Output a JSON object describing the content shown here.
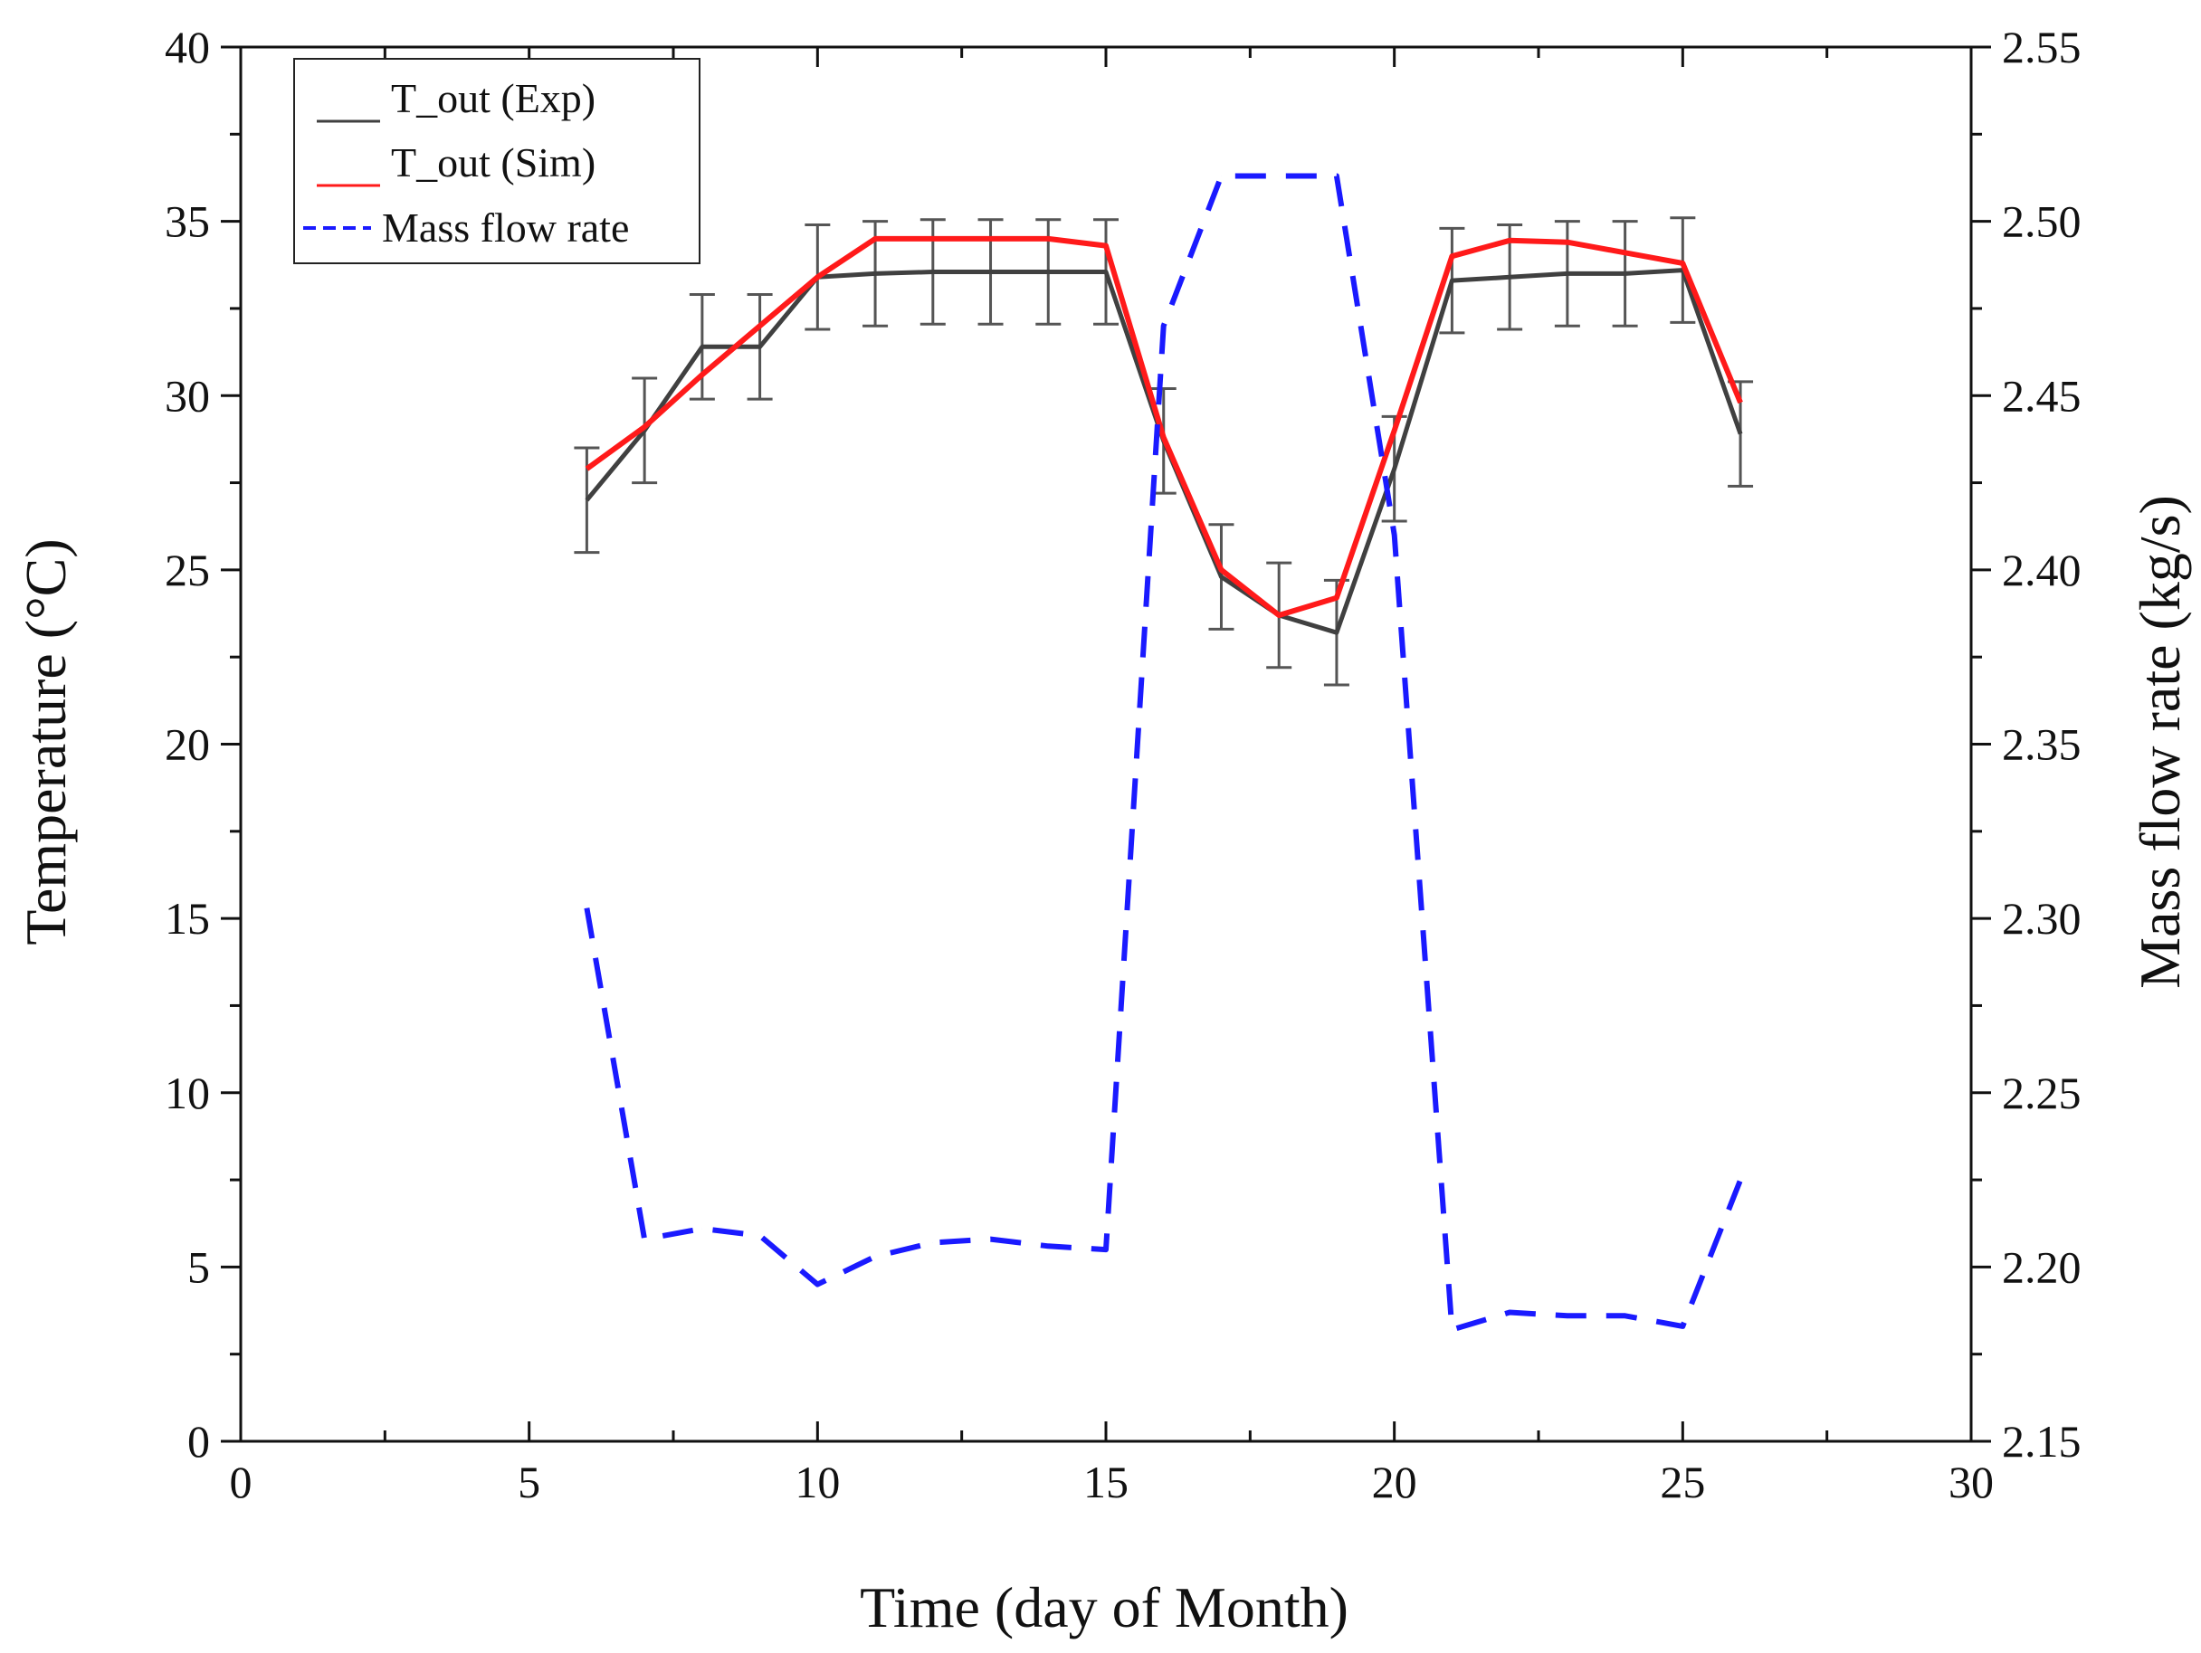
{
  "chart_data": {
    "type": "line",
    "title": "",
    "xlabel": "Time (day of Month)",
    "ylabel": "Temperature (°C)",
    "y2label": "Mass flow rate (kg/s)",
    "xlim": [
      0,
      30
    ],
    "ylim": [
      0,
      40
    ],
    "y2lim": [
      2.15,
      2.55
    ],
    "xticks": [
      0,
      5,
      10,
      15,
      20,
      25,
      30
    ],
    "yticks": [
      0,
      5,
      10,
      15,
      20,
      25,
      30,
      35,
      40
    ],
    "y2ticks": [
      2.15,
      2.2,
      2.25,
      2.3,
      2.35,
      2.4,
      2.45,
      2.5,
      2.55
    ],
    "xtick_labels": [
      "0",
      "5",
      "10",
      "15",
      "20",
      "25",
      "30"
    ],
    "ytick_labels": [
      "0",
      "5",
      "10",
      "15",
      "20",
      "25",
      "30",
      "35",
      "40"
    ],
    "y2tick_labels": [
      "2.15",
      "2.20",
      "2.25",
      "2.30",
      "2.35",
      "2.40",
      "2.45",
      "2.50",
      "2.55"
    ],
    "grid": false,
    "legend_position": "top-left",
    "x": [
      6,
      7,
      8,
      9,
      10,
      11,
      12,
      13,
      14,
      15,
      16,
      17,
      18,
      19,
      20,
      21,
      22,
      23,
      24,
      25,
      26
    ],
    "series": [
      {
        "name": "T_out (Exp)",
        "axis": "left",
        "color": "#404040",
        "style": "solid",
        "values": [
          27.0,
          29.0,
          31.4,
          31.4,
          33.4,
          33.5,
          33.55,
          33.55,
          33.55,
          33.55,
          28.7,
          24.8,
          23.7,
          23.2,
          27.9,
          33.3,
          33.4,
          33.5,
          33.5,
          33.6,
          28.9
        ],
        "error": [
          1.5,
          1.5,
          1.5,
          1.5,
          1.5,
          1.5,
          1.5,
          1.5,
          1.5,
          1.5,
          1.5,
          1.5,
          1.5,
          1.5,
          1.5,
          1.5,
          1.5,
          1.5,
          1.5,
          1.5,
          1.5
        ]
      },
      {
        "name": "T_out (Sim)",
        "axis": "left",
        "color": "#ff1a1a",
        "style": "solid",
        "values": [
          27.9,
          29.1,
          30.6,
          32.0,
          33.4,
          34.5,
          34.5,
          34.5,
          34.5,
          34.3,
          28.8,
          25.0,
          23.7,
          24.2,
          29.0,
          34.0,
          34.45,
          34.4,
          34.1,
          33.8,
          29.8
        ]
      },
      {
        "name": "Mass flow rate",
        "axis": "right",
        "color": "#1a1aff",
        "style": "dashed",
        "values": [
          2.303,
          2.208,
          2.211,
          2.209,
          2.195,
          2.203,
          2.207,
          2.208,
          2.206,
          2.205,
          2.47,
          2.513,
          2.513,
          2.513,
          2.41,
          2.182,
          2.187,
          2.186,
          2.186,
          2.183,
          2.225
        ]
      }
    ]
  }
}
